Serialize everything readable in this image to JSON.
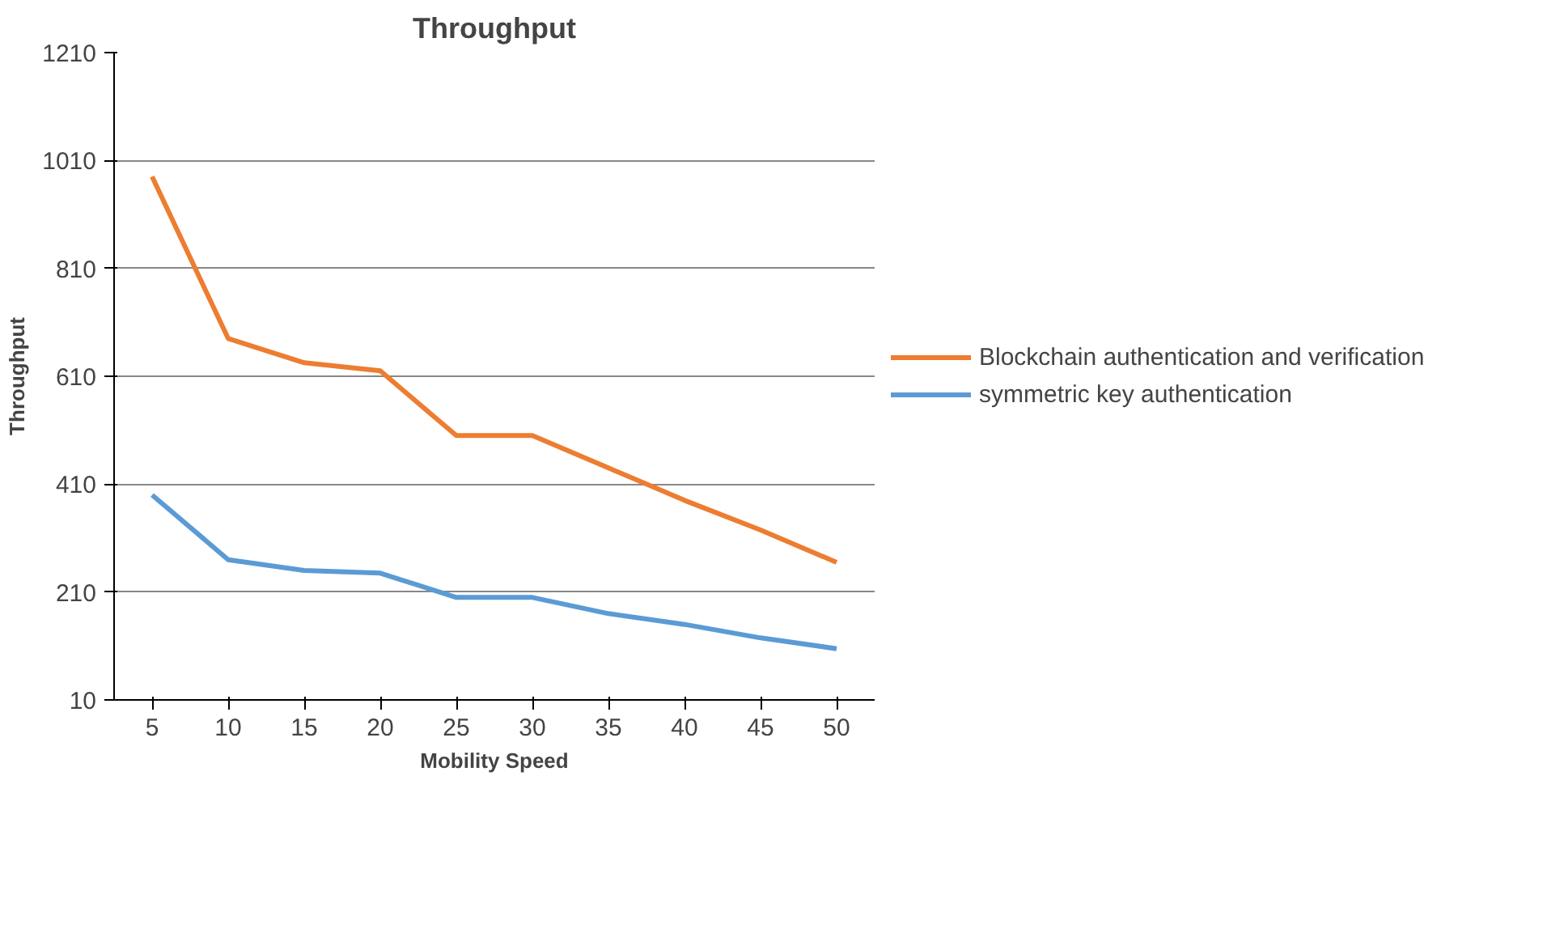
{
  "chart_data": {
    "type": "line",
    "title": "Throughput",
    "xlabel": "Mobility Speed",
    "ylabel": "Throughput",
    "categories": [
      "5",
      "10",
      "15",
      "20",
      "25",
      "30",
      "35",
      "40",
      "45",
      "50"
    ],
    "series": [
      {
        "name": "Blockchain authentication and verification",
        "color": "#ed7d31",
        "values": [
          980,
          680,
          635,
          620,
          500,
          500,
          440,
          380,
          325,
          265
        ]
      },
      {
        "name": "symmetric key authentication",
        "color": "#5b9bd5",
        "values": [
          390,
          270,
          250,
          245,
          200,
          200,
          170,
          150,
          125,
          105
        ]
      }
    ],
    "ylim": [
      10,
      1210
    ],
    "yticks": [
      10,
      210,
      410,
      610,
      810,
      1010,
      1210
    ],
    "grid": "y",
    "legend": "right",
    "marker": "none",
    "line_style": "solid"
  }
}
